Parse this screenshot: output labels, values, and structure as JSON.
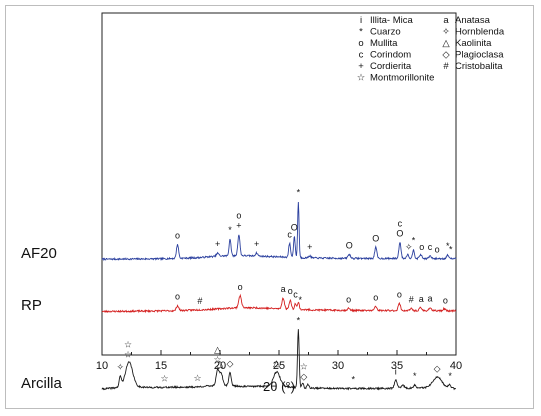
{
  "chart_data": {
    "type": "line",
    "xlabel": "2θ (°)",
    "ylabel": "",
    "xlim": [
      10,
      40
    ],
    "xticks": [
      "10",
      "15",
      "20",
      "25",
      "30",
      "35",
      "40"
    ],
    "grid": false,
    "legend_position": "top-right",
    "legend": [
      {
        "symbol": "i",
        "name": "Illita- Mica"
      },
      {
        "symbol": "*",
        "name": "Cuarzo"
      },
      {
        "symbol": "o",
        "name": "Mullita"
      },
      {
        "symbol": "c",
        "name": "Corindom"
      },
      {
        "symbol": "+",
        "name": "Cordierita"
      },
      {
        "symbol": "☆",
        "name": "Montmorillonite"
      },
      {
        "symbol": "a",
        "name": "Anatasa"
      },
      {
        "symbol": "✧",
        "name": "Hornblenda"
      },
      {
        "symbol": "△",
        "name": "Kaolinita"
      },
      {
        "symbol": "◇",
        "name": "Plagioclasa"
      },
      {
        "symbol": "#",
        "name": "Cristobalita"
      }
    ],
    "series": [
      {
        "name": "AF20",
        "color": "#2a3f9e",
        "offset": 60,
        "noise": 0.8,
        "seed": 7,
        "baseline_points": [
          [
            10,
            1.8
          ],
          [
            15,
            2.2
          ],
          [
            18,
            3.2
          ],
          [
            20,
            5.0
          ],
          [
            22,
            5.4
          ],
          [
            24,
            4.6
          ],
          [
            27,
            3.2
          ],
          [
            30,
            2.7
          ],
          [
            35,
            2.5
          ],
          [
            40,
            2.3
          ]
        ],
        "peaks": [
          [
            16.4,
            14,
            0.09
          ],
          [
            19.8,
            3,
            0.1
          ],
          [
            20.85,
            17,
            0.08
          ],
          [
            21.6,
            21,
            0.09
          ],
          [
            23.1,
            3,
            0.1
          ],
          [
            25.9,
            14,
            0.08
          ],
          [
            26.3,
            21,
            0.07
          ],
          [
            26.64,
            56,
            0.06
          ],
          [
            27.6,
            2,
            0.1
          ],
          [
            30.95,
            4,
            0.1
          ],
          [
            33.2,
            11,
            0.09
          ],
          [
            35.25,
            16,
            0.09
          ],
          [
            35.9,
            4,
            0.1
          ],
          [
            36.4,
            9,
            0.08
          ],
          [
            37.0,
            4,
            0.1
          ],
          [
            37.8,
            2.5,
            0.1
          ],
          [
            39.3,
            3.5,
            0.1
          ]
        ],
        "annotations": [
          [
            16.4,
            "o"
          ],
          [
            19.8,
            "+"
          ],
          [
            20.85,
            "*"
          ],
          [
            21.6,
            "o+"
          ],
          [
            23.1,
            "+"
          ],
          [
            25.9,
            "c"
          ],
          [
            26.3,
            "O"
          ],
          [
            26.64,
            "*"
          ],
          [
            27.6,
            "+"
          ],
          [
            30.95,
            "O"
          ],
          [
            33.2,
            "O"
          ],
          [
            35.25,
            "cO"
          ],
          [
            36.0,
            "✧"
          ],
          [
            36.4,
            "*"
          ],
          [
            37.1,
            "o"
          ],
          [
            37.8,
            "c"
          ],
          [
            38.4,
            "o"
          ],
          [
            39.3,
            "*"
          ],
          [
            39.55,
            "*"
          ]
        ]
      },
      {
        "name": "RP",
        "color": "#d42020",
        "offset": 8,
        "noise": 0.8,
        "seed": 23,
        "baseline_points": [
          [
            10,
            1.5
          ],
          [
            16,
            2.2
          ],
          [
            19,
            3.5
          ],
          [
            21,
            5.0
          ],
          [
            23,
            5.2
          ],
          [
            25,
            4.3
          ],
          [
            28,
            3.0
          ],
          [
            32,
            2.5
          ],
          [
            40,
            2.2
          ]
        ],
        "peaks": [
          [
            16.4,
            5,
            0.1
          ],
          [
            21.7,
            12,
            0.12
          ],
          [
            25.35,
            11,
            0.1
          ],
          [
            25.95,
            9,
            0.09
          ],
          [
            26.4,
            6,
            0.08
          ],
          [
            26.65,
            7,
            0.07
          ],
          [
            30.9,
            2,
            0.1
          ],
          [
            33.2,
            4,
            0.1
          ],
          [
            35.2,
            7,
            0.1
          ],
          [
            36.2,
            2,
            0.1
          ],
          [
            37.0,
            3,
            0.1
          ],
          [
            37.8,
            3,
            0.1
          ],
          [
            39.0,
            2,
            0.1
          ]
        ],
        "annotations": [
          [
            16.4,
            "o"
          ],
          [
            18.3,
            "#"
          ],
          [
            21.7,
            "o"
          ],
          [
            25.35,
            "a"
          ],
          [
            25.95,
            "o"
          ],
          [
            26.4,
            "c"
          ],
          [
            26.8,
            "*"
          ],
          [
            30.9,
            "o"
          ],
          [
            33.2,
            "o"
          ],
          [
            35.2,
            "o"
          ],
          [
            36.2,
            "#"
          ],
          [
            37.05,
            "a"
          ],
          [
            37.8,
            "a"
          ],
          [
            39.1,
            "o"
          ]
        ]
      },
      {
        "name": "Arcilla",
        "color": "#1a1a1a",
        "offset": -70,
        "noise": 0.8,
        "seed": 41,
        "baseline_points": [
          [
            10,
            2
          ],
          [
            11,
            3
          ],
          [
            12,
            5
          ],
          [
            14,
            3.5
          ],
          [
            18,
            4
          ],
          [
            20,
            6
          ],
          [
            22,
            4.5
          ],
          [
            25,
            5
          ],
          [
            27,
            3
          ],
          [
            30,
            2.5
          ],
          [
            34,
            2.5
          ],
          [
            37,
            3
          ],
          [
            38.6,
            5
          ],
          [
            40,
            2.2
          ]
        ],
        "peaks": [
          [
            11.55,
            10,
            0.09
          ],
          [
            12.3,
            24,
            0.3
          ],
          [
            19.8,
            16,
            0.12
          ],
          [
            20.1,
            12,
            0.12
          ],
          [
            20.85,
            13,
            0.1
          ],
          [
            24.8,
            14,
            0.28
          ],
          [
            26.64,
            58,
            0.07
          ],
          [
            27.0,
            5,
            0.08
          ],
          [
            27.45,
            4,
            0.08
          ],
          [
            34.9,
            8,
            0.12
          ],
          [
            35.5,
            3,
            0.12
          ],
          [
            36.5,
            3,
            0.1
          ],
          [
            38.4,
            9,
            0.35
          ],
          [
            39.45,
            3,
            0.1
          ]
        ],
        "annotations": [
          [
            11.55,
            "✧"
          ],
          [
            12.2,
            "☆☆"
          ],
          [
            15.3,
            "☆"
          ],
          [
            18.1,
            "☆"
          ],
          [
            19.8,
            "△☆"
          ],
          [
            20.0,
            "△"
          ],
          [
            20.85,
            "◇"
          ],
          [
            24.8,
            "△"
          ],
          [
            26.64,
            "*"
          ],
          [
            27.1,
            "☆◇"
          ],
          [
            31.3,
            "*"
          ],
          [
            34.9,
            "i"
          ],
          [
            36.5,
            "*"
          ],
          [
            38.4,
            "◇"
          ],
          [
            39.5,
            "*"
          ]
        ]
      }
    ]
  }
}
